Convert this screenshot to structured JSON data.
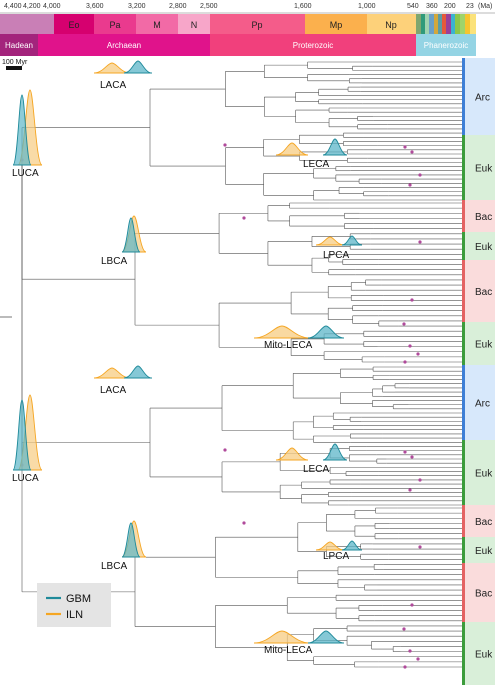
{
  "timescale": {
    "unit": "(Ma)",
    "ticks": [
      "4,400",
      "4,200",
      "4,000",
      "3,600",
      "3,200",
      "2,800",
      "2,500",
      "1,600",
      "1,000",
      "540",
      "360",
      "200",
      "23"
    ],
    "eras": [
      {
        "label": "Eo",
        "color": "#d6006f"
      },
      {
        "label": "Pa",
        "color": "#ea3a8e"
      },
      {
        "label": "M",
        "color": "#f26aa6"
      },
      {
        "label": "N",
        "color": "#f7a6c9"
      },
      {
        "label": "Pp",
        "color": "#f45c8a"
      },
      {
        "label": "Mp",
        "color": "#fbb04d"
      },
      {
        "label": "Np",
        "color": "#fdd17a"
      }
    ],
    "eons": [
      {
        "label": "Hadean",
        "color": "#a3247c"
      },
      {
        "label": "Archaean",
        "color": "#e0138b"
      },
      {
        "label": "Proterozoic",
        "color": "#f1407c"
      },
      {
        "label": "Phanerozoic",
        "color": "#94d4e4"
      }
    ],
    "hadean_strip_color": "#c97fb6"
  },
  "scale_bar": {
    "label": "100 Myr"
  },
  "node_labels": {
    "luca_1": "LUCA",
    "laca_1": "LACA",
    "leca_1": "LECA",
    "lbca_1": "LBCA",
    "lpca_1": "LPCA",
    "mito_1": "Mito-LECA",
    "luca_2": "LUCA",
    "laca_2": "LACA",
    "leca_2": "LECA",
    "lbca_2": "LBCA",
    "lpca_2": "LPCA",
    "mito_2": "Mito-LECA"
  },
  "clades": [
    {
      "label": "Arc",
      "color": "#d7e8fb",
      "bar": "#3d7fd6"
    },
    {
      "label": "Euk",
      "color": "#d9efd9",
      "bar": "#3b9c3b"
    },
    {
      "label": "Bac",
      "color": "#fadcdc",
      "bar": "#e46262"
    },
    {
      "label": "Euk",
      "color": "#d9efd9",
      "bar": "#3b9c3b"
    },
    {
      "label": "Bac",
      "color": "#fadcdc",
      "bar": "#e46262"
    },
    {
      "label": "Euk",
      "color": "#d9efd9",
      "bar": "#3b9c3b"
    },
    {
      "label": "Arc",
      "color": "#d7e8fb",
      "bar": "#3d7fd6"
    },
    {
      "label": "Euk",
      "color": "#d9efd9",
      "bar": "#3b9c3b"
    },
    {
      "label": "Bac",
      "color": "#fadcdc",
      "bar": "#e46262"
    },
    {
      "label": "Euk",
      "color": "#d9efd9",
      "bar": "#3b9c3b"
    },
    {
      "label": "Bac",
      "color": "#fadcdc",
      "bar": "#e46262"
    },
    {
      "label": "Euk",
      "color": "#d9efd9",
      "bar": "#3b9c3b"
    }
  ],
  "legend": {
    "items": [
      {
        "label": "GBM",
        "color": "#1f8a9a"
      },
      {
        "label": "ILN",
        "color": "#f5a623"
      }
    ]
  },
  "colors": {
    "gbm_fill": "#5cb6c8",
    "iln_fill": "#f7cc82",
    "branch": "#555555",
    "calibration": "#b04a9b"
  }
}
